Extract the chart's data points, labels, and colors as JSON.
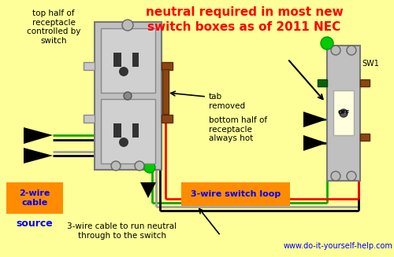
{
  "bg_color": "#FFFF99",
  "title_text": "neutral required in most new\nswitch boxes as of 2011 NEC",
  "title_color": "#FF0000",
  "title_fontsize": 11,
  "website": "www.do-it-yourself-help.com",
  "website_color": "#0000FF",
  "label_2wire": "2-wire\ncable",
  "label_source": "source",
  "label_3wire_loop": "3-wire switch loop",
  "ann_topleft": "top half of\nreceptacle\ncontrolled by\nswitch",
  "ann_tab": "tab\nremoved",
  "ann_bottom": "bottom half of\nreceptacle\nalways hot",
  "ann_3wire": "3-wire cable to run neutral\nthrough to the switch"
}
